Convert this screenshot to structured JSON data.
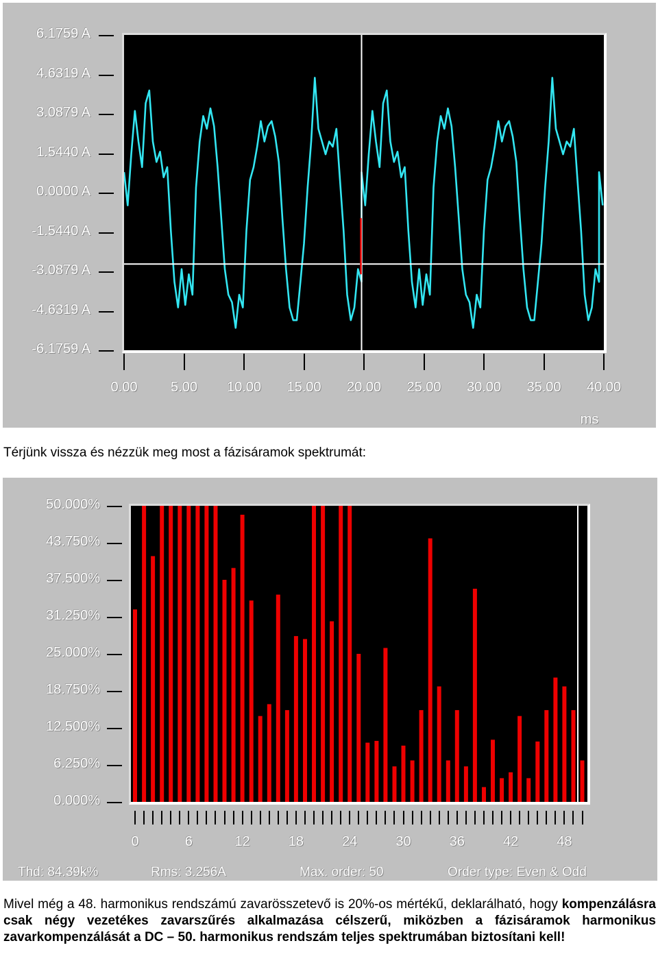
{
  "chart_top": {
    "chart_data": {
      "type": "line",
      "y_ticks": [
        "6.1759 A",
        "4.6319 A",
        "3.0879 A",
        "1.5440 A",
        "0.0000 A",
        "-1.5440 A",
        "-3.0879 A",
        "-4.6319 A",
        "-6.1759 A"
      ],
      "x_ticks": [
        "0.00",
        "5.00",
        "10.00",
        "15.00",
        "20.00",
        "25.00",
        "30.00",
        "35.00",
        "40.00"
      ],
      "xlabel": "ms",
      "xlim": [
        0,
        40
      ],
      "ylim": [
        -6.1759,
        6.1759
      ],
      "cursor_x_ms": 19.8,
      "cursor_y_A": -2.8,
      "series": [
        {
          "values_ms": [
            0,
            0.3,
            0.6,
            0.9,
            1.2,
            1.5,
            1.8,
            2.1,
            2.4,
            2.7,
            3.0,
            3.3,
            3.6,
            3.9,
            4.2,
            4.5,
            4.8,
            5.1,
            5.4,
            5.7,
            6.0,
            6.3,
            6.6,
            6.9,
            7.2,
            7.5,
            7.8,
            8.1,
            8.4,
            8.7,
            9.0,
            9.3,
            9.6,
            9.9,
            10.2,
            10.5,
            10.8,
            11.1,
            11.4,
            11.7,
            12.0,
            12.3,
            12.6,
            12.9,
            13.2,
            13.5,
            13.8,
            14.1,
            14.4,
            14.7,
            15.0,
            15.3,
            15.6,
            15.9,
            16.2,
            16.5,
            16.8,
            17.1,
            17.4,
            17.7,
            18.0,
            18.3,
            18.6,
            18.9,
            19.2,
            19.5,
            19.8
          ],
          "values_A": [
            0.8,
            -0.5,
            1.5,
            3.2,
            2.0,
            1.0,
            3.5,
            4.0,
            2.0,
            1.2,
            1.6,
            0.6,
            1.0,
            -1.5,
            -3.5,
            -4.5,
            -3.0,
            -4.4,
            -3.2,
            -4.0,
            0.2,
            2.0,
            3.0,
            2.5,
            3.3,
            2.6,
            1.0,
            -1.0,
            -3.0,
            -4.0,
            -4.3,
            -5.3,
            -4.0,
            -4.5,
            -1.5,
            0.5,
            1.0,
            1.8,
            2.8,
            2.0,
            2.6,
            2.8,
            2.2,
            1.2,
            -1.0,
            -3.0,
            -4.5,
            -5.0,
            -5.0,
            -3.5,
            -2.0,
            0.2,
            2.0,
            4.5,
            2.5,
            2.0,
            1.5,
            2.0,
            1.8,
            2.5,
            0.5,
            -1.5,
            -4.0,
            -5.0,
            -4.5,
            -3.0,
            -3.5
          ]
        }
      ]
    }
  },
  "caption_1": "Térjünk vissza és nézzük meg most a fázisáramok spektrumát:",
  "chart_bottom": {
    "chart_data": {
      "type": "bar",
      "y_ticks": [
        "50.000%",
        "43.750%",
        "37.500%",
        "31.250%",
        "25.000%",
        "18.750%",
        "12.500%",
        "6.250%",
        "0.000%"
      ],
      "x_ticks": [
        "0",
        "6",
        "12",
        "18",
        "24",
        "30",
        "36",
        "42",
        "48"
      ],
      "ylim": [
        0,
        50
      ],
      "categories": [
        0,
        1,
        2,
        3,
        4,
        5,
        6,
        7,
        8,
        9,
        10,
        11,
        12,
        13,
        14,
        15,
        16,
        17,
        18,
        19,
        20,
        21,
        22,
        23,
        24,
        25,
        26,
        27,
        28,
        29,
        30,
        31,
        32,
        33,
        34,
        35,
        36,
        37,
        38,
        39,
        40,
        41,
        42,
        43,
        44,
        45,
        46,
        47,
        48,
        49,
        50
      ],
      "values": [
        32.5,
        50,
        41.5,
        50,
        50,
        50,
        50,
        50,
        50,
        50,
        37.5,
        39.5,
        48.5,
        34,
        14.5,
        16.5,
        35,
        15.5,
        28,
        27.5,
        50,
        50,
        30.5,
        50,
        50,
        25,
        10,
        10.3,
        26,
        6,
        9.5,
        7,
        15.5,
        44.5,
        19.5,
        7,
        15.5,
        6,
        36,
        2.5,
        10.5,
        4,
        5,
        14.5,
        4,
        10.2,
        15.5,
        21,
        19.5,
        15.5,
        7
      ]
    }
  },
  "stats": {
    "thd": "Thd: 84.39k%",
    "rms": "Rms: 3.256A",
    "max_order": "Max. order: 50",
    "order_type": "Order type: Even & Odd"
  },
  "paragraph": {
    "normal": "Mivel még a 48. harmonikus rendszámú zavarösszetevő is 20%-os mértékű, deklarálható, hogy ",
    "bold": "kompenzálásra csak négy vezetékes zavarszűrés alkalmazása célszerű, miközben a fázisáramok harmonikus zavarkompenzálását a DC – 50. harmonikus rendszám teljes spektrumában biztosítani kell!"
  },
  "colors": {
    "trace": "#33e6f2",
    "bar": "#ee0000",
    "panel": "#c0c0c0",
    "plot_bg": "#000000"
  }
}
